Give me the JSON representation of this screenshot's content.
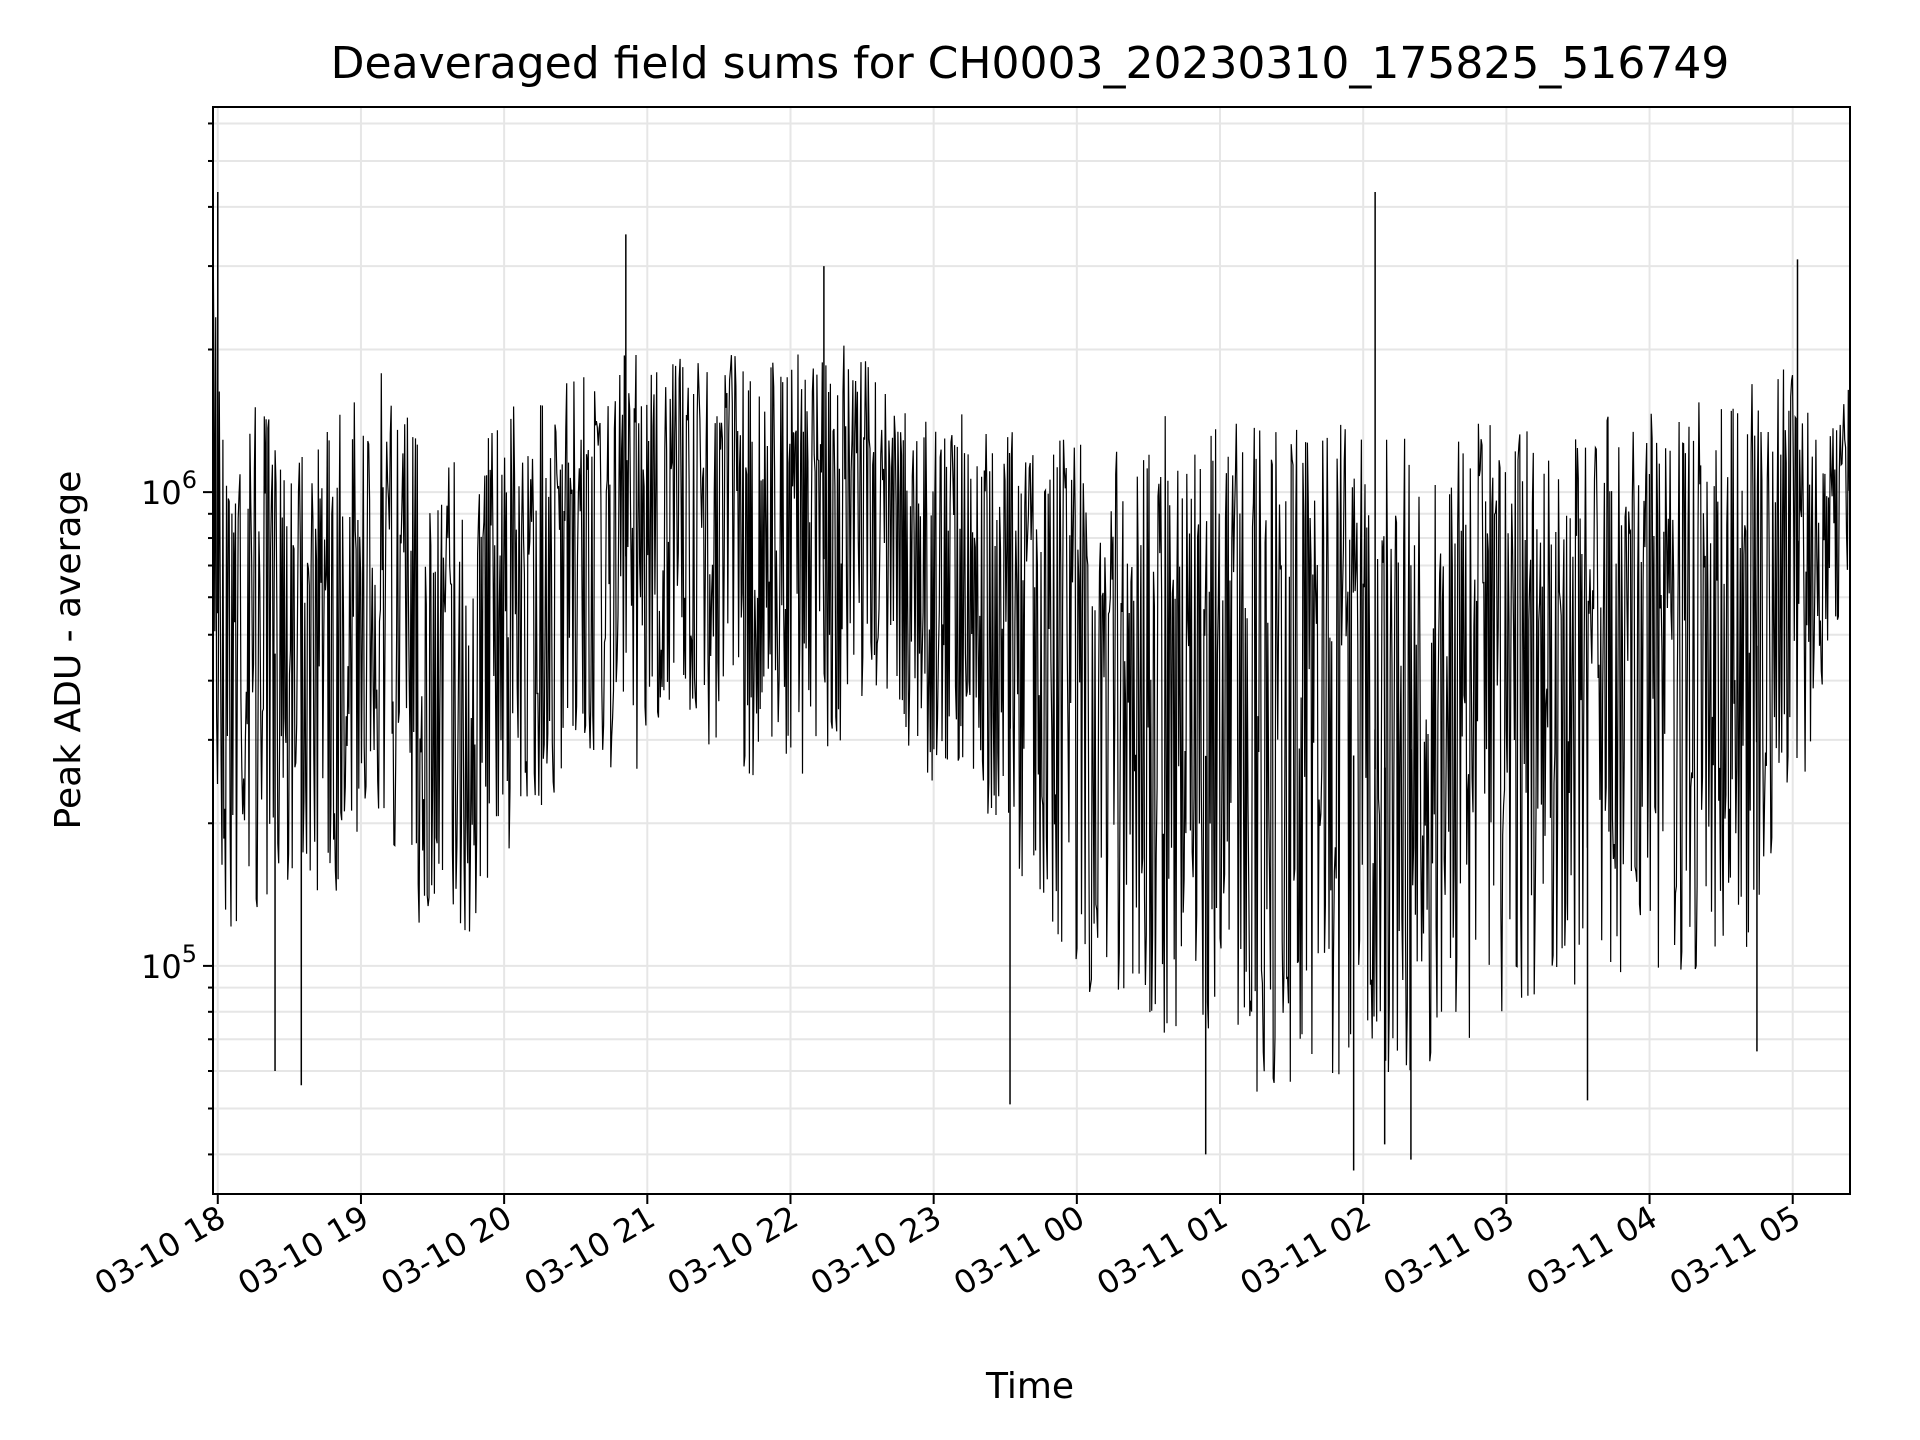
{
  "chart_data": {
    "type": "line",
    "title": "Deaveraged field sums for CH0003_20230310_175825_516749",
    "xlabel": "Time",
    "ylabel": "Peak ADU - average",
    "xscale": "time",
    "yscale": "log",
    "xlim": [
      "2023-03-10 17:58",
      "2023-03-11 05:24"
    ],
    "ylim": [
      33000,
      6500000
    ],
    "grid": true,
    "legend": "none",
    "line_color": "#000000",
    "grid_color": "#e6e6e6",
    "x_ticks": [
      {
        "value": "2023-03-10 18:00",
        "label": "03-10 18"
      },
      {
        "value": "2023-03-10 19:00",
        "label": "03-10 19"
      },
      {
        "value": "2023-03-10 20:00",
        "label": "03-10 20"
      },
      {
        "value": "2023-03-10 21:00",
        "label": "03-10 21"
      },
      {
        "value": "2023-03-10 22:00",
        "label": "03-10 22"
      },
      {
        "value": "2023-03-10 23:00",
        "label": "03-10 23"
      },
      {
        "value": "2023-03-11 00:00",
        "label": "03-11 00"
      },
      {
        "value": "2023-03-11 01:00",
        "label": "03-11 01"
      },
      {
        "value": "2023-03-11 02:00",
        "label": "03-11 02"
      },
      {
        "value": "2023-03-11 03:00",
        "label": "03-11 03"
      },
      {
        "value": "2023-03-11 04:00",
        "label": "03-11 04"
      },
      {
        "value": "2023-03-11 05:00",
        "label": "03-11 05"
      }
    ],
    "y_ticks": [
      {
        "value": 100000,
        "base": "10",
        "exp": "5"
      },
      {
        "value": 1000000,
        "base": "10",
        "exp": "6"
      }
    ],
    "series": [
      {
        "x": [
          "2023-03-10 17:58",
          "2023-03-10 18:00",
          "2023-03-10 18:06",
          "2023-03-10 18:12",
          "2023-03-10 18:18",
          "2023-03-10 18:24",
          "2023-03-10 18:30",
          "2023-03-10 18:36",
          "2023-03-10 18:42",
          "2023-03-10 18:48",
          "2023-03-10 18:54",
          "2023-03-10 19:00",
          "2023-03-10 19:06",
          "2023-03-10 19:12",
          "2023-03-10 19:18",
          "2023-03-10 19:24",
          "2023-03-10 19:30",
          "2023-03-10 19:36",
          "2023-03-10 19:42",
          "2023-03-10 19:48",
          "2023-03-10 19:54",
          "2023-03-10 20:00",
          "2023-03-10 20:06",
          "2023-03-10 20:12",
          "2023-03-10 20:18",
          "2023-03-10 20:24",
          "2023-03-10 20:30",
          "2023-03-10 20:36",
          "2023-03-10 20:42",
          "2023-03-10 20:48",
          "2023-03-10 20:54",
          "2023-03-10 21:00",
          "2023-03-10 21:06",
          "2023-03-10 21:12",
          "2023-03-10 21:18",
          "2023-03-10 21:24",
          "2023-03-10 21:30",
          "2023-03-10 21:36",
          "2023-03-10 21:42",
          "2023-03-10 21:48",
          "2023-03-10 21:54",
          "2023-03-10 22:00",
          "2023-03-10 22:06",
          "2023-03-10 22:12",
          "2023-03-10 22:18",
          "2023-03-10 22:24",
          "2023-03-10 22:30",
          "2023-03-10 22:36",
          "2023-03-10 22:42",
          "2023-03-10 22:48",
          "2023-03-10 22:54",
          "2023-03-10 23:00",
          "2023-03-10 23:06",
          "2023-03-10 23:12",
          "2023-03-10 23:18",
          "2023-03-10 23:24",
          "2023-03-10 23:30",
          "2023-03-10 23:36",
          "2023-03-10 23:42",
          "2023-03-10 23:48",
          "2023-03-10 23:54",
          "2023-03-11 00:00",
          "2023-03-11 00:06",
          "2023-03-11 00:12",
          "2023-03-11 00:18",
          "2023-03-11 00:24",
          "2023-03-11 00:30",
          "2023-03-11 00:36",
          "2023-03-11 00:42",
          "2023-03-11 00:48",
          "2023-03-11 00:54",
          "2023-03-11 01:00",
          "2023-03-11 01:06",
          "2023-03-11 01:12",
          "2023-03-11 01:18",
          "2023-03-11 01:24",
          "2023-03-11 01:30",
          "2023-03-11 01:36",
          "2023-03-11 01:42",
          "2023-03-11 01:48",
          "2023-03-11 01:54",
          "2023-03-11 02:00",
          "2023-03-11 02:06",
          "2023-03-11 02:12",
          "2023-03-11 02:18",
          "2023-03-11 02:24",
          "2023-03-11 02:30",
          "2023-03-11 02:36",
          "2023-03-11 02:42",
          "2023-03-11 02:48",
          "2023-03-11 02:54",
          "2023-03-11 03:00",
          "2023-03-11 03:06",
          "2023-03-11 03:12",
          "2023-03-11 03:18",
          "2023-03-11 03:24",
          "2023-03-11 03:30",
          "2023-03-11 03:36",
          "2023-03-11 03:42",
          "2023-03-11 03:48",
          "2023-03-11 03:54",
          "2023-03-11 04:00",
          "2023-03-11 04:06",
          "2023-03-11 04:12",
          "2023-03-11 04:18",
          "2023-03-11 04:24",
          "2023-03-11 04:30",
          "2023-03-11 04:36",
          "2023-03-11 04:42",
          "2023-03-11 04:48",
          "2023-03-11 04:54",
          "2023-03-11 05:00",
          "2023-03-11 05:06",
          "2023-03-11 05:12",
          "2023-03-11 05:18",
          "2023-03-11 05:24"
        ],
        "upper": [
          4200000,
          2200000,
          1900000,
          1500000,
          1700000,
          1300000,
          1500000,
          1400000,
          1300000,
          1500000,
          1700000,
          1600000,
          1900000,
          1800000,
          1600000,
          1400000,
          1300000,
          1300000,
          1300000,
          1400000,
          1500000,
          1600000,
          1500000,
          1500000,
          1600000,
          1700000,
          1800000,
          1900000,
          2000000,
          2300000,
          2000000,
          2000000,
          1800000,
          1900000,
          2000000,
          1900000,
          2000000,
          2100000,
          1900000,
          2000000,
          1900000,
          2000000,
          2000000,
          1900000,
          2000000,
          2100000,
          2200000,
          1800000,
          1700000,
          1500000,
          1400000,
          1500000,
          1400000,
          1500000,
          1500000,
          1400000,
          1400000,
          1400000,
          1350000,
          1400000,
          1400000,
          1400000,
          1400000,
          1400000,
          1350000,
          1400000,
          1400000,
          1450000,
          1500000,
          1400000,
          1400000,
          1350000,
          1400000,
          1400000,
          1400000,
          1350000,
          1400000,
          1450000,
          1450000,
          1400000,
          1400000,
          1400000,
          1400000,
          1350000,
          1400000,
          1400000,
          1450000,
          1400000,
          1350000,
          1400000,
          1400000,
          1350000,
          1400000,
          1400000,
          1350000,
          1400000,
          1400000,
          1400000,
          1500000,
          1400000,
          1400000,
          1500000,
          1500000,
          1550000,
          1550000,
          1600000,
          1600000,
          1700000,
          1700000,
          1800000,
          1800000,
          1900000,
          1500000,
          1300000,
          1400000,
          1700000
        ],
        "lower": [
          450000,
          140000,
          100000,
          150000,
          110000,
          160000,
          150000,
          160000,
          140000,
          130000,
          180000,
          170000,
          200000,
          180000,
          160000,
          120000,
          110000,
          100000,
          110000,
          120000,
          150000,
          170000,
          190000,
          200000,
          210000,
          220000,
          230000,
          240000,
          250000,
          260000,
          240000,
          280000,
          300000,
          320000,
          320000,
          300000,
          260000,
          240000,
          250000,
          250000,
          270000,
          270000,
          250000,
          260000,
          290000,
          300000,
          350000,
          380000,
          350000,
          300000,
          260000,
          240000,
          260000,
          250000,
          230000,
          200000,
          170000,
          150000,
          140000,
          120000,
          100000,
          90000,
          85000,
          80000,
          85000,
          80000,
          75000,
          70000,
          65000,
          60000,
          55000,
          55000,
          52000,
          52000,
          55000,
          52000,
          50000,
          48000,
          52000,
          55000,
          58000,
          50000,
          48000,
          52000,
          58000,
          60000,
          62000,
          65000,
          68000,
          72000,
          75000,
          78000,
          80000,
          85000,
          88000,
          90000,
          88000,
          85000,
          82000,
          85000,
          88000,
          90000,
          92000,
          95000,
          98000,
          100000,
          98000,
          100000,
          110000,
          150000,
          200000,
          220000,
          260000,
          380000,
          480000,
          700000
        ],
        "spikes_high": [
          {
            "x": "2023-03-10 18:00",
            "y": 4300000
          },
          {
            "x": "2023-03-10 20:51",
            "y": 3500000
          },
          {
            "x": "2023-03-10 22:14",
            "y": 3000000
          },
          {
            "x": "2023-03-11 02:05",
            "y": 4300000
          },
          {
            "x": "2023-03-11 05:02",
            "y": 3100000
          }
        ],
        "spikes_low": [
          {
            "x": "2023-03-10 18:24",
            "y": 60000
          },
          {
            "x": "2023-03-10 18:35",
            "y": 56000
          },
          {
            "x": "2023-03-10 23:32",
            "y": 51000
          },
          {
            "x": "2023-03-11 00:54",
            "y": 40000
          },
          {
            "x": "2023-03-11 01:56",
            "y": 37000
          },
          {
            "x": "2023-03-11 02:09",
            "y": 42000
          },
          {
            "x": "2023-03-11 02:20",
            "y": 39000
          },
          {
            "x": "2023-03-11 03:34",
            "y": 52000
          },
          {
            "x": "2023-03-11 04:45",
            "y": 66000
          }
        ]
      }
    ]
  }
}
